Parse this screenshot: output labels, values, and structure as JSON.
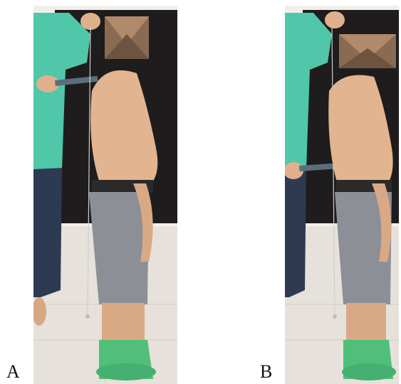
{
  "panels": [
    {
      "label": "A",
      "description_icon": "photo"
    },
    {
      "label": "B",
      "description_icon": "photo"
    }
  ],
  "colors": {
    "wall": "#1e1c1c",
    "floor": "#e6e1da",
    "skin": "#e2b48f",
    "shirt": "#4fc7a8",
    "shorts": "#8c9096",
    "socks": "#4fbf7a",
    "jeans": "#2e3a52",
    "band": "#5c6e7a"
  }
}
